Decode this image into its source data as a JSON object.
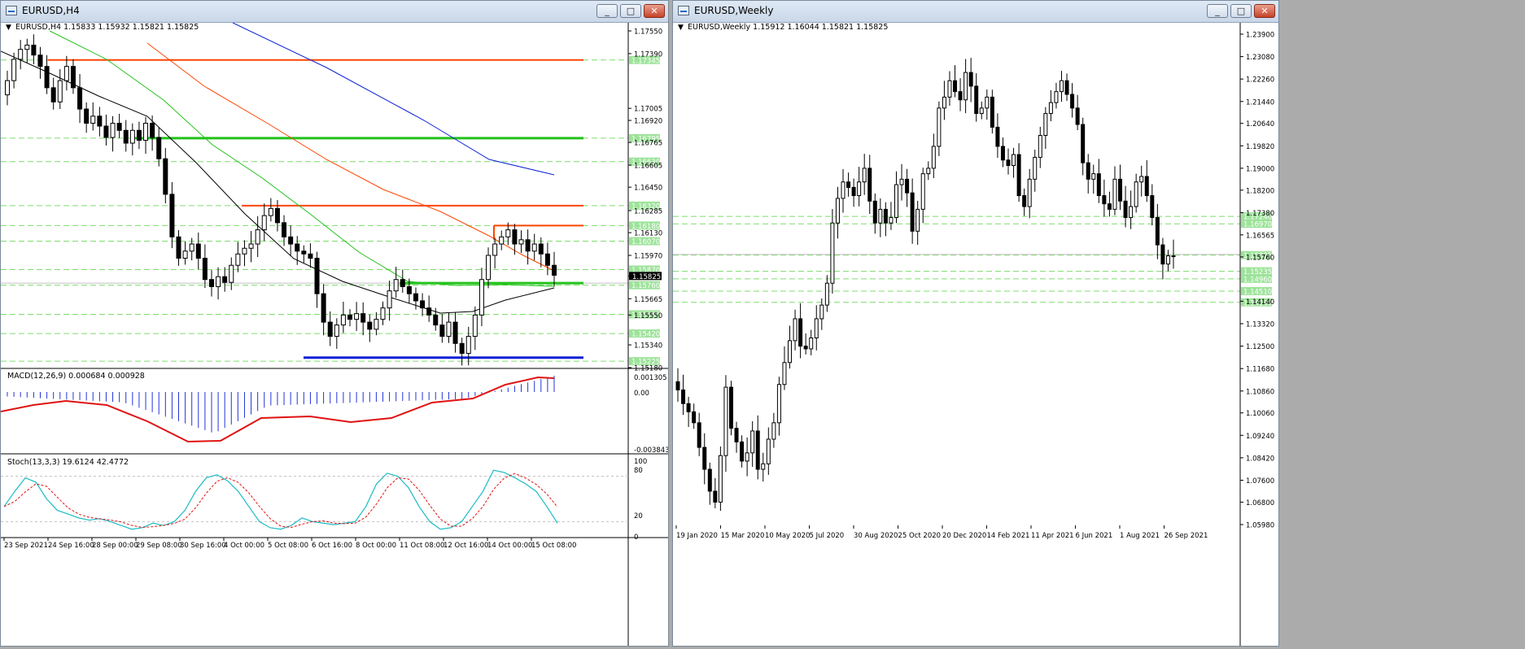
{
  "left_window": {
    "title": "EURUSD,H4",
    "buttons": {
      "minimize": "_",
      "maximize": "□",
      "close": "✕"
    },
    "chart_header": "EURUSD,H4  1.15833 1.15932 1.15821 1.15825",
    "price_labels": [
      "1.17550",
      "1.17390",
      "1.17005",
      "1.16920",
      "1.16765",
      "1.16605",
      "1.16450",
      "1.16285",
      "1.16130",
      "1.15970",
      "1.15825",
      "1.15665",
      "1.15550",
      "1.15340",
      "1.15180"
    ],
    "level_labels": [
      "1.17345",
      "1.16795",
      "1.16630",
      "1.16320",
      "1.16180",
      "1.16070",
      "1.15870",
      "1.15760",
      "1.15555",
      "1.15420",
      "1.15225"
    ],
    "current_price": "1.15825",
    "macd_header": "MACD(12,26,9) 0.000684 0.000928",
    "macd_labels": [
      "0.001305",
      "0.00",
      "-0.003843"
    ],
    "stoch_header": "Stoch(13,3,3) 19.6124 42.4772",
    "stoch_labels": [
      "100",
      "80",
      "20",
      "0"
    ],
    "time_labels": [
      "23 Sep 2021",
      "24 Sep 16:00",
      "28 Sep 00:00",
      "29 Sep 08:00",
      "30 Sep 16:00",
      "4 Oct 00:00",
      "5 Oct 08:00",
      "6 Oct 16:00",
      "8 Oct 00:00",
      "11 Oct 08:00",
      "12 Oct 16:00",
      "14 Oct 00:00",
      "15 Oct 08:00"
    ]
  },
  "right_window": {
    "title": "EURUSD,Weekly",
    "buttons": {
      "minimize": "_",
      "maximize": "□",
      "close": "✕"
    },
    "chart_header": "EURUSD,Weekly  1.15912 1.16044 1.15821 1.15825",
    "price_labels": [
      "1.23900",
      "1.23080",
      "1.22260",
      "1.21440",
      "1.20640",
      "1.19820",
      "1.19000",
      "1.18200",
      "1.17380",
      "1.16565",
      "1.15760",
      "1.14140",
      "1.13320",
      "1.12500",
      "1.11680",
      "1.10860",
      "1.10060",
      "1.09240",
      "1.08420",
      "1.07600",
      "1.06800",
      "1.05980"
    ],
    "level_labels": [
      "1.17240",
      "1.16970",
      "1.15825",
      "1.15235",
      "1.14960",
      "1.14510",
      "1.14100"
    ],
    "time_labels": [
      "19 Jan 2020",
      "15 Mar 2020",
      "10 May 2020",
      "5 Jul 2020",
      "30 Aug 2020",
      "25 Oct 2020",
      "20 Dec 2020",
      "14 Feb 2021",
      "11 Apr 2021",
      "6 Jun 2021",
      "1 Aug 2021",
      "26 Sep 2021"
    ]
  },
  "colors": {
    "level_line": "#7fdc6f",
    "label_bg": "#9de39a",
    "red_line": "#ff4500",
    "green_line": "#22c21a",
    "blue_line": "#0b21d6",
    "macd_hist": "#2435d8",
    "macd_signal": "#e01212",
    "stoch_main": "#1bbcc4",
    "stoch_signal": "#e01212"
  }
}
